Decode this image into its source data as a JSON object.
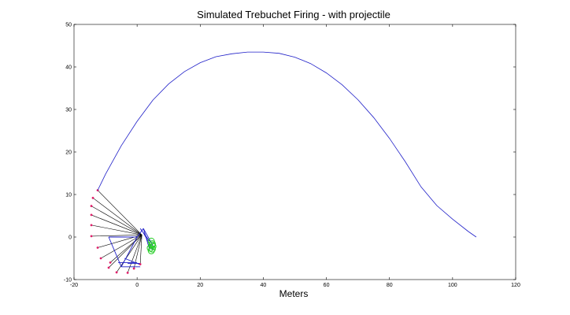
{
  "chart_data": {
    "type": "line",
    "title": "Simulated Trebuchet Firing - with projectile",
    "xlabel": "Meters",
    "ylabel": "",
    "xlim": [
      -20,
      120
    ],
    "ylim": [
      -10,
      50
    ],
    "xticks": [
      -20,
      0,
      20,
      40,
      60,
      80,
      100,
      120
    ],
    "yticks": [
      -10,
      0,
      10,
      20,
      30,
      40,
      50
    ],
    "grid": false,
    "series": [
      {
        "role": "projectile-trajectory",
        "color": "#1f1fc8",
        "points": [
          [
            -12.5,
            11
          ],
          [
            -10,
            14.8
          ],
          [
            -5,
            21.5
          ],
          [
            0,
            27.2
          ],
          [
            5,
            32.2
          ],
          [
            10,
            36.0
          ],
          [
            15,
            38.9
          ],
          [
            20,
            41.0
          ],
          [
            25,
            42.4
          ],
          [
            30,
            43.1
          ],
          [
            35,
            43.5
          ],
          [
            40,
            43.5
          ],
          [
            45,
            43.2
          ],
          [
            50,
            42.3
          ],
          [
            55,
            40.8
          ],
          [
            60,
            38.6
          ],
          [
            65,
            35.8
          ],
          [
            70,
            32.3
          ],
          [
            75,
            28.1
          ],
          [
            80,
            23.2
          ],
          [
            85,
            17.7
          ],
          [
            90,
            11.8
          ],
          [
            95,
            7.4
          ],
          [
            100,
            4.2
          ],
          [
            105,
            1.3
          ],
          [
            107.5,
            0
          ]
        ]
      }
    ],
    "trebuchet": {
      "pivot": [
        1.5,
        0.5
      ],
      "arm_color": "#000000",
      "frame_color": "#1f1fc8",
      "marker_color": "#e0206a",
      "counterweight_color": "#22cc22",
      "frame_segments": [
        [
          [
            -9,
            0
          ],
          [
            0,
            0
          ]
        ],
        [
          [
            -9,
            0
          ],
          [
            -5,
            -7
          ]
        ],
        [
          [
            0,
            0
          ],
          [
            -5,
            -7
          ]
        ],
        [
          [
            0,
            0
          ],
          [
            2,
            2
          ]
        ],
        [
          [
            2,
            2
          ],
          [
            5,
            -2
          ]
        ],
        [
          [
            2,
            2
          ],
          [
            4,
            -3
          ]
        ],
        [
          [
            -3,
            -6.2
          ],
          [
            1,
            -6.2
          ]
        ],
        [
          [
            -5,
            -7
          ],
          [
            1,
            -7
          ]
        ],
        [
          [
            2,
            1
          ],
          [
            5,
            -3
          ]
        ],
        [
          [
            1,
            2
          ],
          [
            4,
            -1
          ]
        ],
        [
          [
            -6,
            -6
          ],
          [
            0,
            -6
          ]
        ],
        [
          [
            -4,
            -5
          ],
          [
            1,
            -6.5
          ]
        ]
      ],
      "arm_tips": [
        [
          -12.5,
          11
        ],
        [
          -14,
          9.2
        ],
        [
          -14.5,
          7.3
        ],
        [
          -14.5,
          5.2
        ],
        [
          -14.5,
          2.8
        ],
        [
          -14.5,
          0.2
        ],
        [
          -12.5,
          -2.5
        ],
        [
          -11.5,
          -5
        ],
        [
          -9,
          -7.2
        ],
        [
          -6.5,
          -8.3
        ],
        [
          -3,
          -8.4
        ],
        [
          -1,
          -7.4
        ],
        [
          1,
          -6.4
        ],
        [
          -8.5,
          -6
        ]
      ],
      "counterweights": [
        [
          4.5,
          -1
        ],
        [
          4.8,
          -1.6
        ],
        [
          5,
          -2.2
        ],
        [
          4.8,
          -2.8
        ],
        [
          4.5,
          -3.2
        ],
        [
          4.2,
          -2.6
        ],
        [
          4.7,
          -1.9
        ]
      ]
    }
  }
}
